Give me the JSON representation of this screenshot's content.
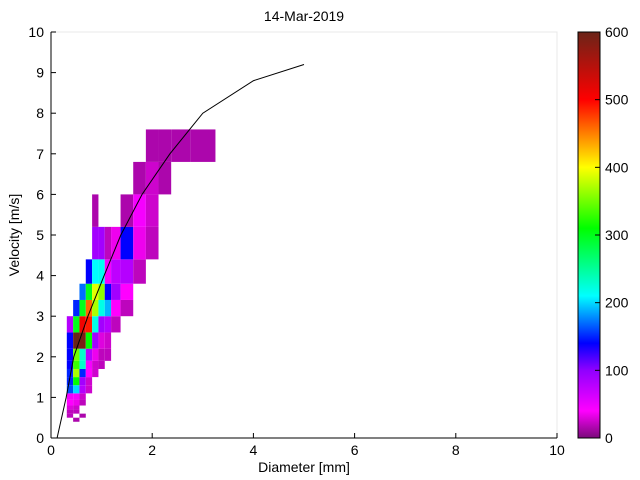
{
  "chart_data": {
    "type": "heatmap",
    "title": "14-Mar-2019",
    "xlabel": "Diameter [mm]",
    "ylabel": "Velocity [m/s]",
    "xlim": [
      0,
      10
    ],
    "ylim": [
      0,
      10
    ],
    "xticks": [
      0,
      2,
      4,
      6,
      8,
      10
    ],
    "yticks": [
      0,
      1,
      2,
      3,
      4,
      5,
      6,
      7,
      8,
      9,
      10
    ],
    "grid": false,
    "colorbar": {
      "range": [
        0,
        600
      ],
      "ticks": [
        0,
        100,
        200,
        300,
        400,
        500,
        600
      ],
      "colormap": [
        [
          0,
          "#7a0a7a"
        ],
        [
          40,
          "#ff00ff"
        ],
        [
          100,
          "#9000ff"
        ],
        [
          140,
          "#0000ff"
        ],
        [
          210,
          "#00ffff"
        ],
        [
          310,
          "#00ff00"
        ],
        [
          400,
          "#ffff00"
        ],
        [
          500,
          "#ff0000"
        ],
        [
          600,
          "#6b2418"
        ]
      ]
    },
    "diameter_bin_edges": [
      0.3125,
      0.4375,
      0.5625,
      0.6875,
      0.8125,
      0.9375,
      1.0625,
      1.1875,
      1.375,
      1.625,
      1.875,
      2.125,
      2.375,
      2.75,
      3.25
    ],
    "velocity_bin_edges": [
      0.4,
      0.5,
      0.6,
      0.7,
      0.8,
      0.95,
      1.1,
      1.3,
      1.5,
      1.7,
      1.9,
      2.2,
      2.6,
      3.0,
      3.4,
      3.8,
      4.4,
      5.2,
      6.0,
      6.8,
      7.6
    ],
    "cells_note": "each cell = [diameter_bin_index, velocity_bin_index, count]",
    "cells": [
      [
        1,
        0,
        15
      ],
      [
        0,
        1,
        20
      ],
      [
        2,
        1,
        15
      ],
      [
        0,
        2,
        20
      ],
      [
        1,
        2,
        20
      ],
      [
        0,
        3,
        30
      ],
      [
        1,
        3,
        25
      ],
      [
        0,
        4,
        40
      ],
      [
        1,
        4,
        35
      ],
      [
        2,
        4,
        20
      ],
      [
        0,
        5,
        45
      ],
      [
        1,
        5,
        45
      ],
      [
        2,
        5,
        25
      ],
      [
        0,
        6,
        160
      ],
      [
        1,
        6,
        200
      ],
      [
        2,
        6,
        80
      ],
      [
        3,
        6,
        25
      ],
      [
        0,
        7,
        150
      ],
      [
        1,
        7,
        310
      ],
      [
        2,
        7,
        90
      ],
      [
        3,
        7,
        25
      ],
      [
        0,
        8,
        150
      ],
      [
        1,
        8,
        370
      ],
      [
        2,
        8,
        150
      ],
      [
        3,
        8,
        40
      ],
      [
        4,
        8,
        25
      ],
      [
        0,
        9,
        140
      ],
      [
        1,
        9,
        330
      ],
      [
        2,
        9,
        230
      ],
      [
        3,
        9,
        45
      ],
      [
        4,
        9,
        25
      ],
      [
        5,
        9,
        20
      ],
      [
        0,
        10,
        140
      ],
      [
        1,
        10,
        350
      ],
      [
        2,
        10,
        230
      ],
      [
        3,
        10,
        80
      ],
      [
        4,
        10,
        35
      ],
      [
        5,
        10,
        20
      ],
      [
        6,
        10,
        20
      ],
      [
        0,
        11,
        140
      ],
      [
        1,
        11,
        600
      ],
      [
        2,
        11,
        590
      ],
      [
        3,
        11,
        310
      ],
      [
        4,
        11,
        90
      ],
      [
        5,
        11,
        30
      ],
      [
        6,
        11,
        25
      ],
      [
        0,
        12,
        80
      ],
      [
        1,
        12,
        300
      ],
      [
        2,
        12,
        510
      ],
      [
        3,
        12,
        490
      ],
      [
        4,
        12,
        220
      ],
      [
        5,
        12,
        90
      ],
      [
        6,
        12,
        80
      ],
      [
        7,
        12,
        20
      ],
      [
        1,
        13,
        150
      ],
      [
        2,
        13,
        300
      ],
      [
        3,
        13,
        460
      ],
      [
        4,
        13,
        370
      ],
      [
        5,
        13,
        220
      ],
      [
        6,
        13,
        190
      ],
      [
        7,
        13,
        40
      ],
      [
        8,
        13,
        20
      ],
      [
        2,
        14,
        170
      ],
      [
        3,
        14,
        300
      ],
      [
        4,
        14,
        390
      ],
      [
        5,
        14,
        360
      ],
      [
        6,
        14,
        140
      ],
      [
        7,
        14,
        90
      ],
      [
        8,
        14,
        40
      ],
      [
        3,
        15,
        140
      ],
      [
        4,
        15,
        210
      ],
      [
        5,
        15,
        215
      ],
      [
        6,
        15,
        45
      ],
      [
        7,
        15,
        75
      ],
      [
        8,
        15,
        80
      ],
      [
        9,
        15,
        20
      ],
      [
        4,
        16,
        90
      ],
      [
        5,
        16,
        90
      ],
      [
        6,
        16,
        20
      ],
      [
        7,
        16,
        35
      ],
      [
        8,
        16,
        140
      ],
      [
        9,
        16,
        35
      ],
      [
        10,
        16,
        20
      ],
      [
        4,
        17,
        15
      ],
      [
        8,
        17,
        15
      ],
      [
        9,
        17,
        45
      ],
      [
        10,
        17,
        25
      ],
      [
        9,
        18,
        15
      ],
      [
        10,
        18,
        25
      ],
      [
        11,
        18,
        15
      ],
      [
        10,
        19,
        15
      ],
      [
        11,
        19,
        15
      ],
      [
        12,
        19,
        15
      ],
      [
        13,
        19,
        15
      ]
    ],
    "fit_curve": {
      "x": [
        0.12,
        0.3,
        0.45,
        0.73,
        1.05,
        1.38,
        1.8,
        2.35,
        3.0,
        4.0,
        5.0
      ],
      "y": [
        0,
        1,
        2,
        3,
        4,
        5,
        6,
        7,
        8,
        8.8,
        9.2
      ]
    }
  }
}
